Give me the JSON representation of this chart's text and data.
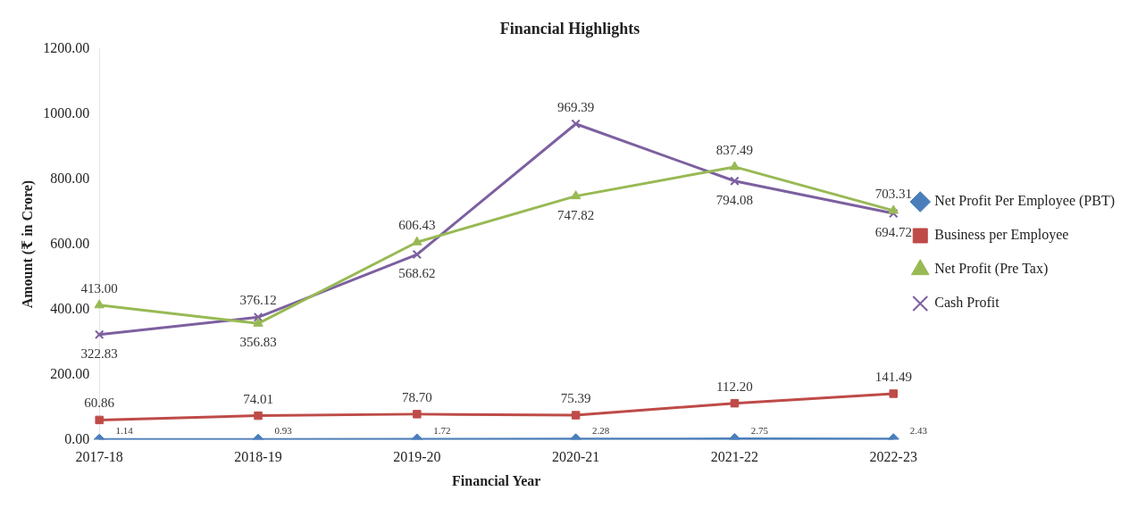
{
  "chart_data": {
    "type": "line",
    "title": "Financial Highlights",
    "xlabel": "Financial Year",
    "ylabel": "Amount (₹ in Crore)",
    "categories": [
      "2017-18",
      "2018-19",
      "2019-20",
      "2020-21",
      "2021-22",
      "2022-23"
    ],
    "series": [
      {
        "name": "Net Profit Per Employee (PBT)",
        "color": "#4a7ebb",
        "marker": "diamond",
        "values": [
          1.14,
          0.93,
          1.72,
          2.28,
          2.75,
          2.43
        ],
        "value_labels": [
          "1.14",
          "0.93",
          "1.72",
          "2.28",
          "2.75",
          "2.43"
        ]
      },
      {
        "name": "Business per Employee",
        "color": "#be4b48",
        "marker": "square",
        "values": [
          60.86,
          74.01,
          78.7,
          75.39,
          112.2,
          141.49
        ],
        "value_labels": [
          "60.86",
          "74.01",
          "78.70",
          "75.39",
          "112.20",
          "141.49"
        ]
      },
      {
        "name": "Net Profit (Pre Tax)",
        "color": "#98b954",
        "marker": "triangle",
        "values": [
          413,
          356.83,
          606.43,
          747.82,
          837.49,
          703.31
        ],
        "value_labels": [
          "413.00",
          "356.83",
          "606.43",
          "747.82",
          "837.49",
          "703.31"
        ]
      },
      {
        "name": "Cash Profit",
        "color": "#7d60a0",
        "marker": "cross",
        "values": [
          322.83,
          376.12,
          568.62,
          969.39,
          794.08,
          694.72
        ],
        "value_labels": [
          "322.83",
          "376.12",
          "568.62",
          "969.39",
          "794.08",
          "694.72"
        ]
      }
    ],
    "ylim": [
      0,
      1200
    ],
    "yticks": [
      {
        "value": 0,
        "label": "0.00"
      },
      {
        "value": 200,
        "label": "200.00"
      },
      {
        "value": 400,
        "label": "400.00"
      },
      {
        "value": 600,
        "label": "600.00"
      },
      {
        "value": 800,
        "label": "800.00"
      },
      {
        "value": 1000,
        "label": "1000.00"
      },
      {
        "value": 1200,
        "label": "1200.00"
      }
    ],
    "grid": false,
    "legend": "right"
  }
}
